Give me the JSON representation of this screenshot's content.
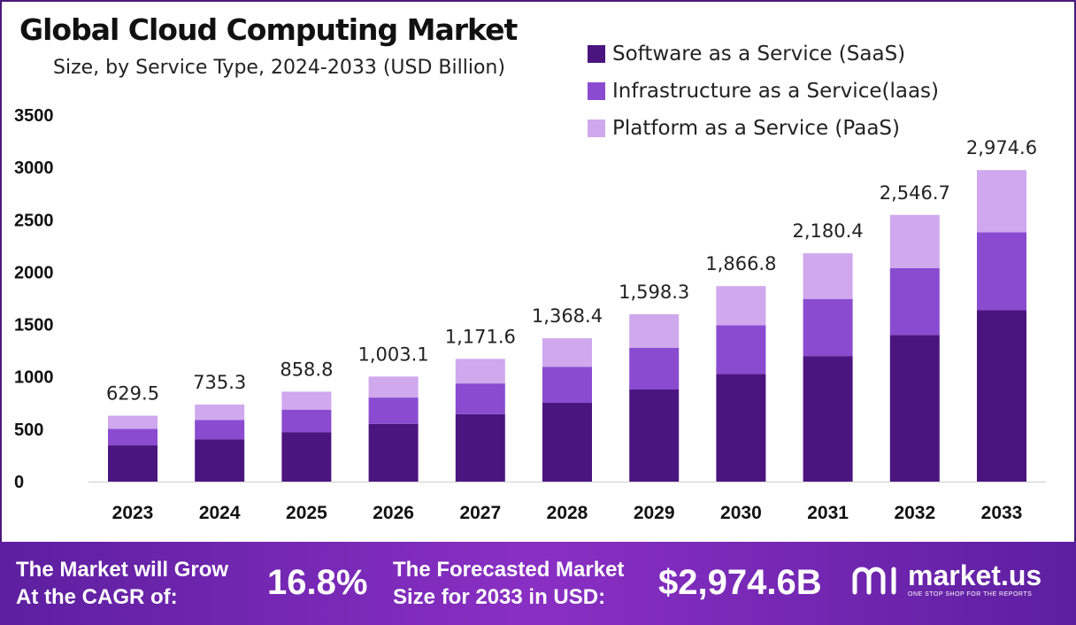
{
  "chart_data": {
    "type": "bar",
    "stacked": true,
    "title": "Global Cloud Computing Market",
    "subtitle": "Size, by Service Type, 2024-2033 (USD Billion)",
    "categories": [
      "2023",
      "2024",
      "2025",
      "2026",
      "2027",
      "2028",
      "2029",
      "2030",
      "2031",
      "2032",
      "2033"
    ],
    "series": [
      {
        "name": "Software as a Service (SaaS)",
        "color": "#4b1580",
        "values": [
          346.2,
          404.4,
          472.3,
          551.7,
          644.4,
          752.6,
          879.1,
          1026.7,
          1199.2,
          1400.7,
          1636.0
        ]
      },
      {
        "name": "Infrastructure as a Service(laas)",
        "color": "#8a4bd0",
        "values": [
          157.4,
          183.8,
          214.7,
          250.8,
          292.9,
          342.1,
          399.6,
          466.7,
          545.1,
          636.7,
          743.7
        ]
      },
      {
        "name": "Platform as a Service (PaaS)",
        "color": "#d0a8ee",
        "values": [
          125.9,
          147.1,
          171.8,
          200.6,
          234.3,
          273.7,
          319.6,
          373.4,
          436.1,
          509.3,
          594.9
        ]
      }
    ],
    "totals": [
      "629.5",
      "735.3",
      "858.8",
      "1,003.1",
      "1,171.6",
      "1,368.4",
      "1,598.3",
      "1,866.8",
      "2,180.4",
      "2,546.7",
      "2,974.6"
    ],
    "yticks": [
      "0",
      "500",
      "1000",
      "1500",
      "2000",
      "2500",
      "3000",
      "3500"
    ],
    "ylim": [
      0,
      3500
    ],
    "xlabel": "",
    "ylabel": "",
    "grid": false,
    "legend_position": "top-right"
  },
  "footer": {
    "cagr_label_1": "The Market will Grow",
    "cagr_label_2": "At the CAGR of:",
    "cagr_value": "16.8%",
    "forecast_label_1": "The Forecasted Market",
    "forecast_label_2": "Size for 2033 in USD:",
    "forecast_value": "$2,974.6B",
    "brand_name": "market.us",
    "brand_tagline": "ONE STOP SHOP FOR THE REPORTS",
    "color_start": "#5d1fa0",
    "color_end": "#8a2fc4"
  }
}
